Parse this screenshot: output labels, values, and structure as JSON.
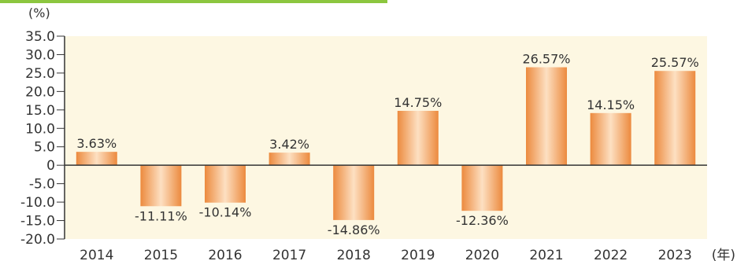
{
  "chart_data": {
    "type": "bar",
    "categories": [
      "2014",
      "2015",
      "2016",
      "2017",
      "2018",
      "2019",
      "2020",
      "2021",
      "2022",
      "2023"
    ],
    "values": [
      3.63,
      -11.11,
      -10.14,
      3.42,
      -14.86,
      14.75,
      -12.36,
      26.57,
      14.15,
      25.57
    ],
    "data_labels": [
      "3.63%",
      "-11.11%",
      "-10.14%",
      "3.42%",
      "-14.86%",
      "14.75%",
      "-12.36%",
      "26.57%",
      "14.15%",
      "25.57%"
    ],
    "y_ticks": [
      "35.0",
      "30.0",
      "25.0",
      "20.0",
      "15.0",
      "10.0",
      "5.0",
      "0",
      "-5.0",
      "-10.0",
      "-15.0",
      "-20.0"
    ],
    "ylim": [
      -20,
      35
    ],
    "y_unit_label": "(%)",
    "x_unit_label": "(年)",
    "grid": false,
    "colors": {
      "plot_background": "#fdf7e2",
      "bar_edge": "#ec8a3e",
      "bar_center": "#fde0c2",
      "axis": "#333333",
      "accent_line": "#8cc63f"
    }
  }
}
